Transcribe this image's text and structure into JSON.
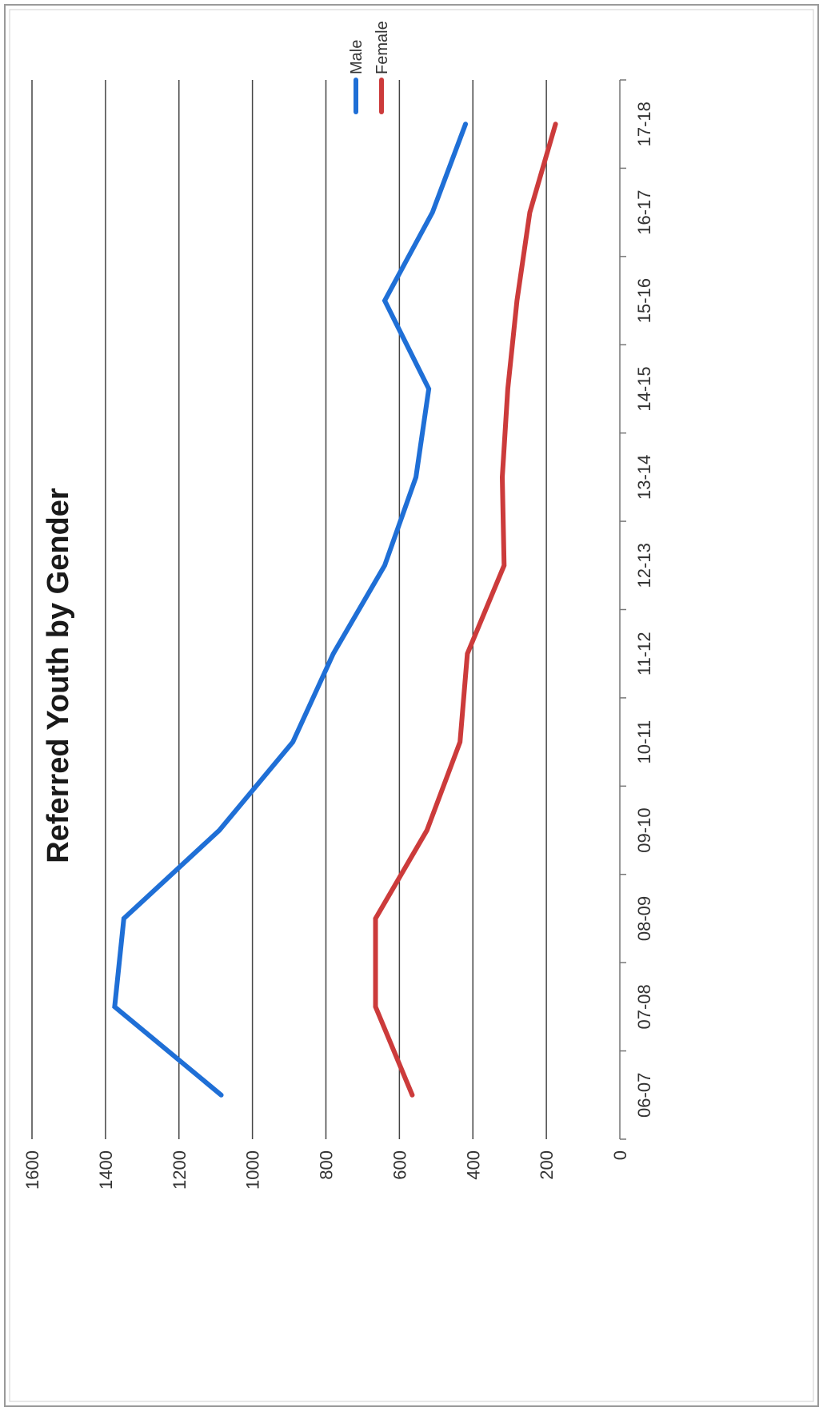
{
  "chart_data": {
    "type": "line",
    "title": "Referred Youth by Gender",
    "xlabel": "",
    "ylabel": "",
    "categories": [
      "06-07",
      "07-08",
      "08-09",
      "09-10",
      "10-11",
      "11-12",
      "12-13",
      "13-14",
      "14-15",
      "15-16",
      "16-17",
      "17-18"
    ],
    "ylim": [
      0,
      1600
    ],
    "yticks": [
      0,
      200,
      400,
      600,
      800,
      1000,
      1200,
      1400,
      1600
    ],
    "grid": true,
    "legend": "top-right",
    "series": [
      {
        "name": "Male",
        "color": "#1f6fd6",
        "values": [
          1085,
          1375,
          1350,
          1090,
          890,
          780,
          640,
          555,
          520,
          640,
          510,
          420
        ]
      },
      {
        "name": "Female",
        "color": "#cc3b3b",
        "values": [
          565,
          665,
          665,
          525,
          435,
          415,
          315,
          320,
          305,
          280,
          245,
          175
        ]
      }
    ]
  }
}
